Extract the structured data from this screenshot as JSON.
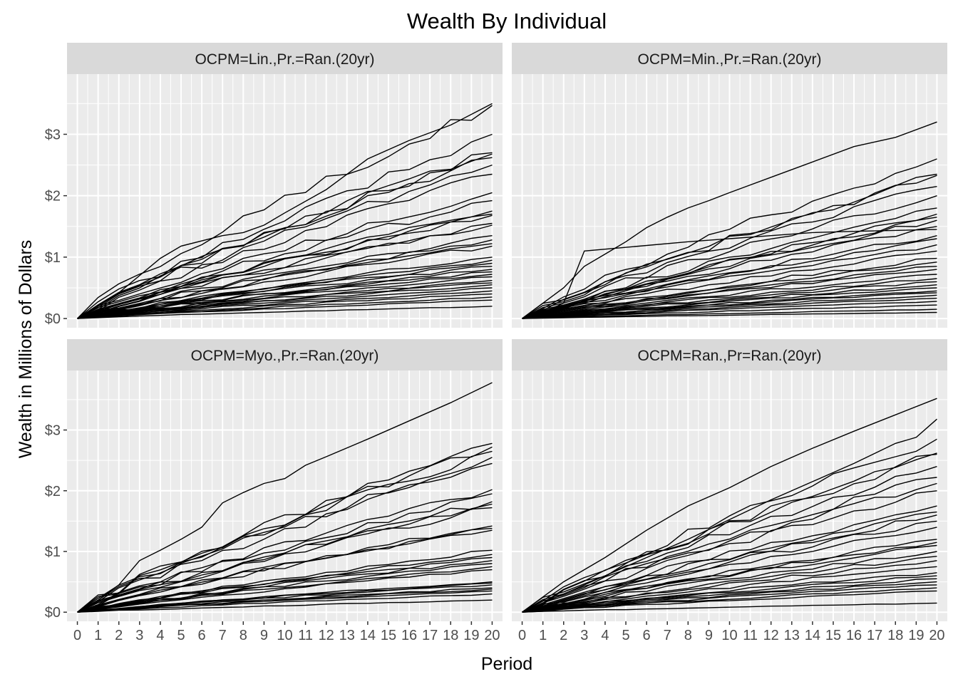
{
  "chart_data": {
    "type": "line",
    "title": "Wealth By Individual",
    "xlabel": "Period",
    "ylabel": "Wealth in Millions of Dollars",
    "x_ticks": [
      "0",
      "1",
      "2",
      "3",
      "4",
      "5",
      "6",
      "7",
      "8",
      "9",
      "10",
      "11",
      "12",
      "13",
      "14",
      "15",
      "16",
      "17",
      "18",
      "19",
      "20"
    ],
    "y_ticks": [
      "$0",
      "$1",
      "$2",
      "$3"
    ],
    "ylim": [
      -0.15,
      3.98
    ],
    "xlim": [
      -0.5,
      20.5
    ],
    "grid": true,
    "legend": "none",
    "facets": [
      {
        "label": "OCPM=Lin.,Pr.=Ran.(20yr)",
        "x": [
          0,
          20
        ],
        "series": [
          {
            "values": [
              0,
              3.5
            ],
            "path": [
              [
                0,
                0
              ],
              [
                2,
                0.42
              ],
              [
                4,
                0.98
              ],
              [
                5,
                1.18
              ],
              [
                7,
                1.35
              ],
              [
                8,
                1.4
              ],
              [
                9,
                1.52
              ],
              [
                10,
                1.72
              ],
              [
                12,
                2.1
              ],
              [
                14,
                2.6
              ],
              [
                16,
                2.9
              ],
              [
                18,
                3.15
              ],
              [
                20,
                3.5
              ]
            ]
          },
          {
            "values": [
              0,
              3.47
            ]
          },
          {
            "values": [
              0,
              3.0
            ]
          },
          {
            "values": [
              0,
              2.7
            ]
          },
          {
            "values": [
              0,
              2.68
            ]
          },
          {
            "values": [
              0,
              2.62
            ]
          },
          {
            "values": [
              0,
              2.5
            ]
          },
          {
            "values": [
              0,
              2.35
            ]
          },
          {
            "values": [
              0,
              2.05
            ]
          },
          {
            "values": [
              0,
              1.92
            ]
          },
          {
            "values": [
              0,
              1.75
            ]
          },
          {
            "values": [
              0,
              1.7
            ]
          },
          {
            "values": [
              0,
              1.68
            ]
          },
          {
            "values": [
              0,
              1.55
            ]
          },
          {
            "values": [
              0,
              1.52
            ]
          },
          {
            "values": [
              0,
              1.35
            ]
          },
          {
            "values": [
              0,
              1.28
            ]
          },
          {
            "values": [
              0,
              1.22
            ]
          },
          {
            "values": [
              0,
              1.18
            ]
          },
          {
            "values": [
              0,
              1.0
            ]
          },
          {
            "values": [
              0,
              0.95
            ]
          },
          {
            "values": [
              0,
              0.9
            ]
          },
          {
            "values": [
              0,
              0.85
            ]
          },
          {
            "values": [
              0,
              0.8
            ]
          },
          {
            "values": [
              0,
              0.76
            ]
          },
          {
            "values": [
              0,
              0.72
            ]
          },
          {
            "values": [
              0,
              0.68
            ]
          },
          {
            "values": [
              0,
              0.62
            ]
          },
          {
            "values": [
              0,
              0.58
            ]
          },
          {
            "values": [
              0,
              0.55
            ]
          },
          {
            "values": [
              0,
              0.5
            ]
          },
          {
            "values": [
              0,
              0.45
            ]
          },
          {
            "values": [
              0,
              0.4
            ]
          },
          {
            "values": [
              0,
              0.35
            ]
          },
          {
            "values": [
              0,
              0.3
            ]
          },
          {
            "values": [
              0,
              0.2
            ]
          }
        ]
      },
      {
        "label": "OCPM=Min.,Pr.=Ran.(20yr)",
        "x": [
          0,
          20
        ],
        "series": [
          {
            "values": [
              0,
              3.2
            ],
            "path": [
              [
                0,
                0
              ],
              [
                2,
                0.5
              ],
              [
                3,
                0.85
              ],
              [
                4,
                1.05
              ],
              [
                5,
                1.25
              ],
              [
                6,
                1.48
              ],
              [
                7,
                1.65
              ],
              [
                8,
                1.8
              ],
              [
                9,
                1.92
              ],
              [
                10,
                2.05
              ],
              [
                12,
                2.3
              ],
              [
                14,
                2.55
              ],
              [
                16,
                2.8
              ],
              [
                18,
                2.95
              ],
              [
                20,
                3.2
              ]
            ]
          },
          {
            "values": [
              0,
              1.45
            ],
            "path": [
              [
                0,
                0
              ],
              [
                1,
                0.1
              ],
              [
                2,
                0.25
              ],
              [
                3,
                1.1
              ],
              [
                8,
                1.25
              ],
              [
                10,
                1.3
              ],
              [
                12,
                1.35
              ],
              [
                14,
                1.4
              ],
              [
                16,
                1.42
              ],
              [
                20,
                1.45
              ]
            ]
          },
          {
            "values": [
              0,
              2.6
            ]
          },
          {
            "values": [
              0,
              2.35
            ]
          },
          {
            "values": [
              0,
              2.33
            ]
          },
          {
            "values": [
              0,
              2.15
            ]
          },
          {
            "values": [
              0,
              2.0
            ]
          },
          {
            "values": [
              0,
              1.8
            ]
          },
          {
            "values": [
              0,
              1.7
            ]
          },
          {
            "values": [
              0,
              1.65
            ]
          },
          {
            "values": [
              0,
              1.6
            ]
          },
          {
            "values": [
              0,
              1.5
            ]
          },
          {
            "values": [
              0,
              1.35
            ]
          },
          {
            "values": [
              0,
              1.3
            ]
          },
          {
            "values": [
              0,
              1.2
            ]
          },
          {
            "values": [
              0,
              1.1
            ]
          },
          {
            "values": [
              0,
              0.98
            ]
          },
          {
            "values": [
              0,
              0.92
            ]
          },
          {
            "values": [
              0,
              0.85
            ]
          },
          {
            "values": [
              0,
              0.8
            ]
          },
          {
            "values": [
              0,
              0.72
            ]
          },
          {
            "values": [
              0,
              0.65
            ]
          },
          {
            "values": [
              0,
              0.6
            ]
          },
          {
            "values": [
              0,
              0.55
            ]
          },
          {
            "values": [
              0,
              0.5
            ]
          },
          {
            "values": [
              0,
              0.45
            ]
          },
          {
            "values": [
              0,
              0.42
            ]
          },
          {
            "values": [
              0,
              0.38
            ]
          },
          {
            "values": [
              0,
              0.33
            ]
          },
          {
            "values": [
              0,
              0.28
            ]
          },
          {
            "values": [
              0,
              0.22
            ]
          },
          {
            "values": [
              0,
              0.15
            ]
          },
          {
            "values": [
              0,
              0.1
            ]
          }
        ]
      },
      {
        "label": "OCPM=Myo.,Pr.=Ran.(20yr)",
        "x": [
          0,
          20
        ],
        "series": [
          {
            "values": [
              0,
              3.78
            ],
            "path": [
              [
                0,
                0
              ],
              [
                1,
                0.2
              ],
              [
                2,
                0.45
              ],
              [
                3,
                0.85
              ],
              [
                4,
                1.02
              ],
              [
                5,
                1.2
              ],
              [
                6,
                1.4
              ],
              [
                7,
                1.8
              ],
              [
                8,
                1.97
              ],
              [
                9,
                2.12
              ],
              [
                10,
                2.2
              ],
              [
                11,
                2.42
              ],
              [
                12,
                2.56
              ],
              [
                14,
                2.85
              ],
              [
                16,
                3.15
              ],
              [
                18,
                3.45
              ],
              [
                20,
                3.78
              ]
            ]
          },
          {
            "values": [
              0,
              2.78
            ]
          },
          {
            "values": [
              0,
              2.72
            ]
          },
          {
            "values": [
              0,
              2.65
            ]
          },
          {
            "values": [
              0,
              2.55
            ]
          },
          {
            "values": [
              0,
              2.45
            ]
          },
          {
            "values": [
              0,
              2.02
            ]
          },
          {
            "values": [
              0,
              1.95
            ]
          },
          {
            "values": [
              0,
              1.82
            ]
          },
          {
            "values": [
              0,
              1.78
            ]
          },
          {
            "values": [
              0,
              1.72
            ]
          },
          {
            "values": [
              0,
              1.42
            ]
          },
          {
            "values": [
              0,
              1.38
            ]
          },
          {
            "values": [
              0,
              1.35
            ]
          },
          {
            "values": [
              0,
              1.02
            ]
          },
          {
            "values": [
              0,
              0.95
            ]
          },
          {
            "values": [
              0,
              0.9
            ]
          },
          {
            "values": [
              0,
              0.85
            ]
          },
          {
            "values": [
              0,
              0.8
            ]
          },
          {
            "values": [
              0,
              0.75
            ]
          },
          {
            "values": [
              0,
              0.7
            ]
          },
          {
            "values": [
              0,
              0.5
            ]
          },
          {
            "values": [
              0,
              0.48
            ]
          },
          {
            "values": [
              0,
              0.45
            ]
          },
          {
            "values": [
              0,
              0.4
            ]
          },
          {
            "values": [
              0,
              0.38
            ]
          },
          {
            "values": [
              0,
              0.35
            ]
          },
          {
            "values": [
              0,
              0.3
            ]
          },
          {
            "values": [
              0,
              0.2
            ]
          }
        ]
      },
      {
        "label": "OCPM=Ran.,Pr=Ran.(20yr)",
        "x": [
          0,
          20
        ],
        "series": [
          {
            "values": [
              0,
              3.52
            ],
            "path": [
              [
                0,
                0
              ],
              [
                2,
                0.5
              ],
              [
                4,
                0.9
              ],
              [
                6,
                1.35
              ],
              [
                8,
                1.75
              ],
              [
                10,
                2.05
              ],
              [
                12,
                2.4
              ],
              [
                14,
                2.7
              ],
              [
                16,
                2.98
              ],
              [
                18,
                3.25
              ],
              [
                20,
                3.52
              ]
            ]
          },
          {
            "values": [
              0,
              3.18
            ],
            "path": [
              [
                0,
                0
              ],
              [
                4,
                0.6
              ],
              [
                8,
                1.2
              ],
              [
                12,
                1.85
              ],
              [
                16,
                2.45
              ],
              [
                18,
                2.78
              ],
              [
                19,
                2.88
              ],
              [
                20,
                3.18
              ]
            ]
          },
          {
            "values": [
              0,
              2.85
            ]
          },
          {
            "values": [
              0,
              2.62
            ]
          },
          {
            "values": [
              0,
              2.6
            ]
          },
          {
            "values": [
              0,
              2.4
            ]
          },
          {
            "values": [
              0,
              2.22
            ]
          },
          {
            "values": [
              0,
              2.12
            ]
          },
          {
            "values": [
              0,
              2.0
            ]
          },
          {
            "values": [
              0,
              1.75
            ]
          },
          {
            "values": [
              0,
              1.65
            ]
          },
          {
            "values": [
              0,
              1.6
            ]
          },
          {
            "values": [
              0,
              1.5
            ]
          },
          {
            "values": [
              0,
              1.4
            ]
          },
          {
            "values": [
              0,
              1.2
            ]
          },
          {
            "values": [
              0,
              1.15
            ]
          },
          {
            "values": [
              0,
              1.1
            ]
          },
          {
            "values": [
              0,
              1.0
            ]
          },
          {
            "values": [
              0,
              0.92
            ]
          },
          {
            "values": [
              0,
              0.85
            ]
          },
          {
            "values": [
              0,
              0.75
            ]
          },
          {
            "values": [
              0,
              0.65
            ]
          },
          {
            "values": [
              0,
              0.6
            ]
          },
          {
            "values": [
              0,
              0.55
            ]
          },
          {
            "values": [
              0,
              0.5
            ]
          },
          {
            "values": [
              0,
              0.45
            ]
          },
          {
            "values": [
              0,
              0.4
            ]
          },
          {
            "values": [
              0,
              0.35
            ]
          },
          {
            "values": [
              0,
              0.15
            ]
          }
        ]
      }
    ]
  },
  "colors": {
    "panel_bg": "#ebebeb",
    "strip_bg": "#d9d9d9",
    "grid": "#ffffff",
    "line": "#000000",
    "tick_text": "#4d4d4d",
    "tick_mark": "#333333"
  }
}
